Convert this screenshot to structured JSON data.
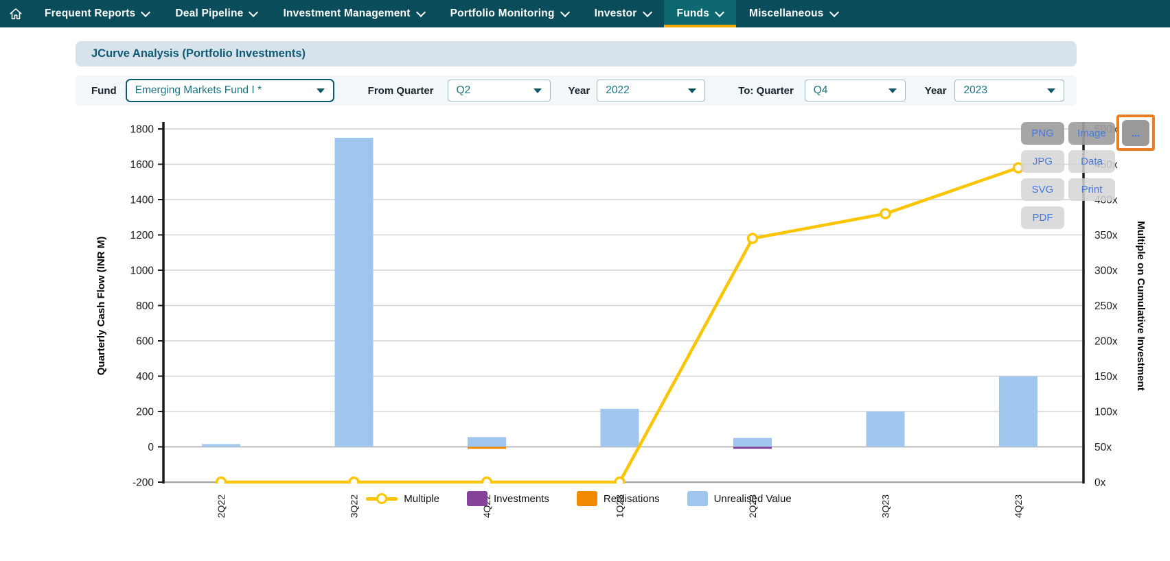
{
  "nav": {
    "items": [
      {
        "label": "Frequent Reports",
        "active": false
      },
      {
        "label": "Deal Pipeline",
        "active": false
      },
      {
        "label": "Investment Management",
        "active": false
      },
      {
        "label": "Portfolio Monitoring",
        "active": false
      },
      {
        "label": "Investor",
        "active": false
      },
      {
        "label": "Funds",
        "active": true
      },
      {
        "label": "Miscellaneous",
        "active": false
      }
    ]
  },
  "page_title": "JCurve Analysis (Portfolio Investments)",
  "filters": {
    "fund": {
      "label": "Fund",
      "value": "Emerging Markets Fund I *"
    },
    "from_quarter": {
      "label": "From Quarter",
      "value": "Q2"
    },
    "from_year": {
      "label": "Year",
      "value": "2022"
    },
    "to_quarter": {
      "label": "To: Quarter",
      "value": "Q4"
    },
    "to_year": {
      "label": "Year",
      "value": "2023"
    }
  },
  "export_menu": {
    "format_buttons": [
      "PNG",
      "JPG",
      "SVG",
      "PDF"
    ],
    "action_buttons": [
      "Image",
      "Data",
      "Print"
    ],
    "more_button": "..."
  },
  "chart_data": {
    "type": "combo bar+line (J-curve)",
    "categories": [
      "2Q22",
      "3Q22",
      "4Q22",
      "1Q23",
      "2Q23",
      "3Q23",
      "4Q23"
    ],
    "series": [
      {
        "name": "Multiple",
        "type": "line",
        "axis": "right",
        "color": "#fcc502",
        "values": [
          0,
          0,
          0,
          0,
          345,
          380,
          445
        ]
      },
      {
        "name": "Investments",
        "type": "bar",
        "axis": "left",
        "color": "#85439a",
        "values": [
          0,
          0,
          0,
          0,
          -10,
          0,
          0
        ]
      },
      {
        "name": "Realisations",
        "type": "bar",
        "axis": "left",
        "color": "#f18a00",
        "values": [
          0,
          0,
          -5,
          0,
          0,
          0,
          0
        ]
      },
      {
        "name": "Unrealised Value",
        "type": "bar",
        "axis": "left",
        "color": "#a1c6ee",
        "values": [
          15,
          1750,
          55,
          215,
          50,
          200,
          400
        ]
      }
    ],
    "ylabel_left": "Quarterly Cash Flow (INR M)",
    "ylabel_right": "Multiple on Cumulative Investment",
    "ylim_left": [
      -200,
      1800
    ],
    "ytick_step_left": 200,
    "ylim_right": [
      0,
      500
    ],
    "ytick_step_right": 50,
    "right_tick_suffix": "x",
    "grid": true,
    "legend_position": "bottom"
  },
  "colors": {
    "nav_bg": "#0a4c59",
    "nav_active_bg": "#0d6872",
    "nav_active_underline": "#f0a800",
    "title_bar_bg": "#d7e2ea",
    "title_text": "#0e5a73",
    "dropdown_text": "#1b7380",
    "line_yellow": "#fcc502",
    "bar_blue": "#a1c6ee",
    "bar_purple": "#85439a",
    "bar_orange": "#f18a00",
    "button_text_blue": "#4678e0",
    "annotation_orange": "#e97e22"
  }
}
